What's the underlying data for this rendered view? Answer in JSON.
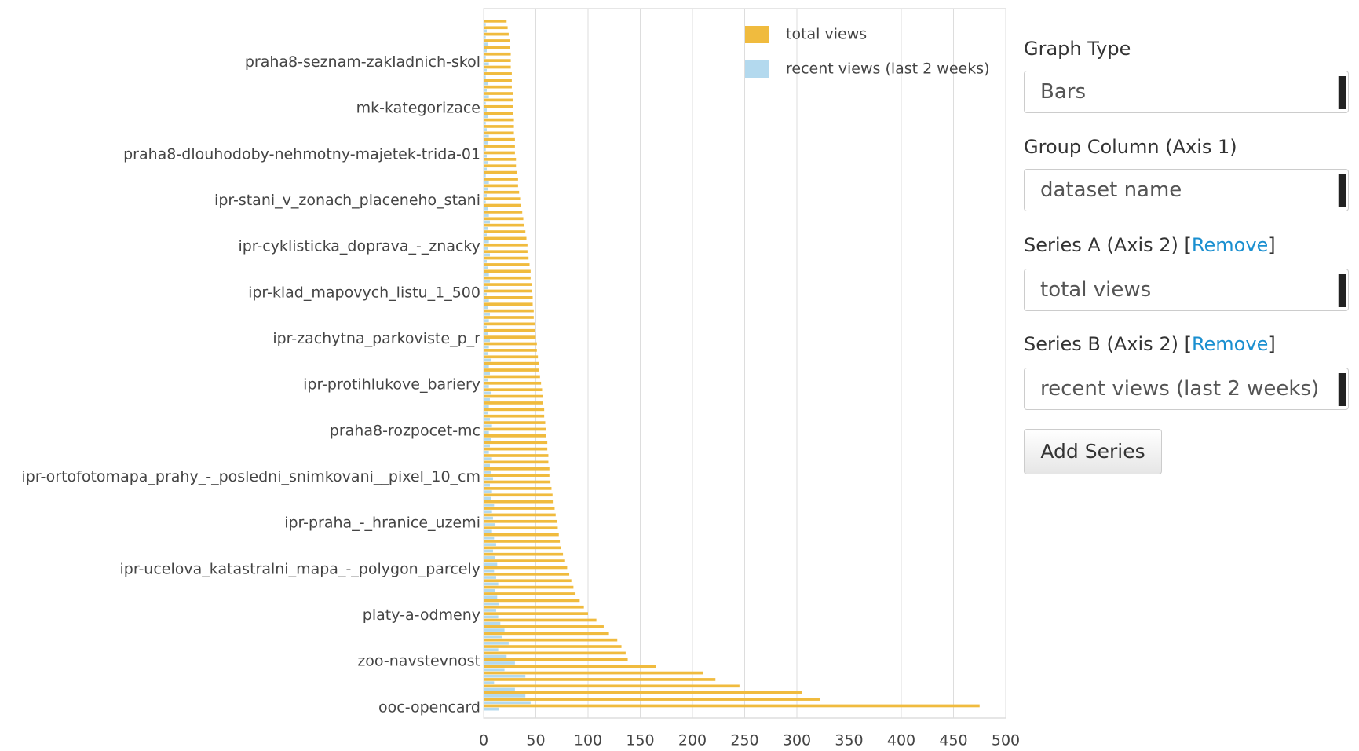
{
  "chart_data": {
    "type": "bar",
    "orientation": "horizontal",
    "legend": "top-right",
    "grid": true,
    "xlim": [
      0,
      500
    ],
    "xticks": [
      0,
      50,
      100,
      150,
      200,
      250,
      300,
      350,
      400,
      450,
      500
    ],
    "categories": [
      null,
      null,
      null,
      null,
      null,
      null,
      "praha8-seznam-zakladnich-skol",
      null,
      null,
      null,
      null,
      null,
      null,
      "mk-kategorizace",
      null,
      null,
      null,
      null,
      null,
      null,
      "praha8-dlouhodoby-nehmotny-majetek-trida-01",
      null,
      null,
      null,
      null,
      null,
      null,
      "ipr-stani_v_zonach_placeneho_stani",
      null,
      null,
      null,
      null,
      null,
      null,
      "ipr-cyklisticka_doprava_-_znacky",
      null,
      null,
      null,
      null,
      null,
      null,
      "ipr-klad_mapovych_listu_1_500",
      null,
      null,
      null,
      null,
      null,
      null,
      "ipr-zachytna_parkoviste_p_r",
      null,
      null,
      null,
      null,
      null,
      null,
      "ipr-protihlukove_bariery",
      null,
      null,
      null,
      null,
      null,
      null,
      "praha8-rozpocet-mc",
      null,
      null,
      null,
      null,
      null,
      null,
      "ipr-ortofotomapa_prahy_-_posledni_snimkovani__pixel_10_cm",
      null,
      null,
      null,
      null,
      null,
      null,
      "ipr-praha_-_hranice_uzemi",
      null,
      null,
      null,
      null,
      null,
      null,
      "ipr-ucelova_katastralni_mapa_-_polygon_parcely",
      null,
      null,
      null,
      null,
      null,
      null,
      "platy-a-odmeny",
      null,
      null,
      null,
      null,
      null,
      null,
      "zoo-navstevnost",
      null,
      null,
      null,
      null,
      null,
      null,
      "ooc-opencard"
    ],
    "series": [
      {
        "name": "total views",
        "color": "#f0bb3e",
        "values": [
          22,
          23,
          24,
          25,
          25,
          26,
          26,
          26,
          27,
          27,
          27,
          28,
          28,
          28,
          28,
          29,
          29,
          29,
          30,
          30,
          30,
          31,
          31,
          32,
          33,
          33,
          34,
          35,
          36,
          37,
          38,
          39,
          40,
          41,
          42,
          42,
          43,
          44,
          45,
          45,
          46,
          46,
          47,
          47,
          48,
          48,
          49,
          49,
          50,
          51,
          51,
          52,
          53,
          53,
          54,
          55,
          56,
          57,
          57,
          58,
          58,
          59,
          60,
          60,
          61,
          61,
          62,
          62,
          63,
          63,
          64,
          65,
          66,
          67,
          68,
          69,
          70,
          71,
          72,
          73,
          74,
          76,
          78,
          80,
          82,
          84,
          86,
          88,
          92,
          96,
          100,
          108,
          115,
          120,
          128,
          132,
          136,
          138,
          165,
          210,
          222,
          245,
          305,
          322,
          475
        ]
      },
      {
        "name": "recent views (last 2 weeks)",
        "color": "#b3d9ee",
        "values": [
          2,
          3,
          2,
          4,
          3,
          2,
          5,
          3,
          2,
          4,
          3,
          5,
          2,
          3,
          4,
          2,
          3,
          5,
          4,
          2,
          3,
          4,
          3,
          2,
          5,
          4,
          3,
          2,
          4,
          5,
          6,
          4,
          3,
          5,
          4,
          6,
          3,
          4,
          5,
          6,
          4,
          3,
          5,
          4,
          6,
          5,
          3,
          4,
          6,
          5,
          4,
          7,
          5,
          6,
          4,
          5,
          7,
          6,
          5,
          4,
          6,
          8,
          5,
          7,
          6,
          5,
          8,
          6,
          7,
          9,
          6,
          8,
          7,
          10,
          8,
          9,
          11,
          8,
          10,
          12,
          9,
          11,
          13,
          10,
          12,
          14,
          11,
          13,
          15,
          12,
          14,
          16,
          20,
          18,
          24,
          14,
          22,
          30,
          20,
          40,
          10,
          30,
          40,
          45,
          15
        ]
      }
    ]
  },
  "panel": {
    "fields": [
      {
        "label": "Graph Type",
        "value": "Bars"
      },
      {
        "label": "Group Column (Axis 1)",
        "value": "dataset name"
      },
      {
        "label": "Series A (Axis 2) [",
        "link": "Remove",
        "label_end": "]",
        "value": "total views"
      },
      {
        "label": "Series B (Axis 2) [",
        "link": "Remove",
        "label_end": "]",
        "value": "recent views (last 2 weeks)"
      }
    ],
    "button": "Add Series"
  }
}
